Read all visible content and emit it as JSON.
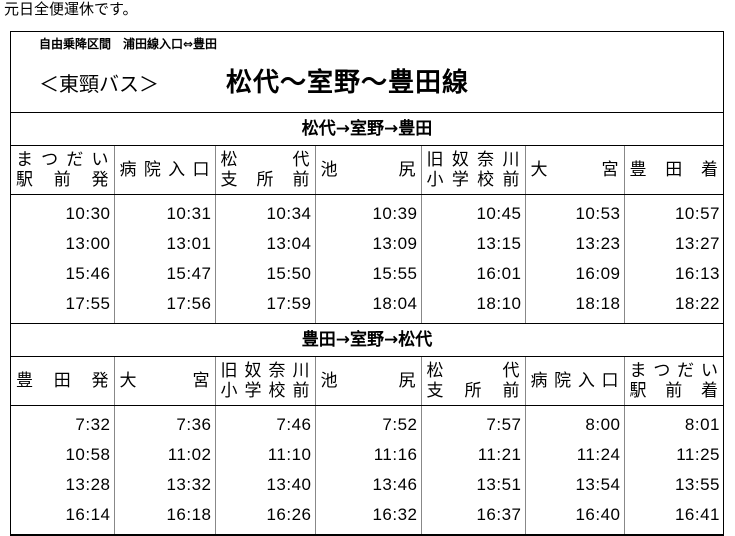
{
  "notice": "元日全便運休です。",
  "header": {
    "free_boarding": "自由乗降区間　浦田線入口⇔豊田",
    "operator": "＜東頸バス＞",
    "route_name": "松代～室野～豊田線"
  },
  "timetables": [
    {
      "direction": "松代→室野→豊田",
      "stops": [
        [
          "まつだい",
          "駅 前 発"
        ],
        [
          "病院入口"
        ],
        [
          "松　代",
          "支 所 前"
        ],
        [
          "池　尻"
        ],
        [
          "旧奴奈川",
          "小学校前"
        ],
        [
          "大　宮"
        ],
        [
          "豊 田 着"
        ]
      ],
      "rows": [
        [
          "10:30",
          "10:31",
          "10:34",
          "10:39",
          "10:45",
          "10:53",
          "10:57"
        ],
        [
          "13:00",
          "13:01",
          "13:04",
          "13:09",
          "13:15",
          "13:23",
          "13:27"
        ],
        [
          "15:46",
          "15:47",
          "15:50",
          "15:55",
          "16:01",
          "16:09",
          "16:13"
        ],
        [
          "17:55",
          "17:56",
          "17:59",
          "18:04",
          "18:10",
          "18:18",
          "18:22"
        ]
      ]
    },
    {
      "direction": "豊田→室野→松代",
      "stops": [
        [
          "豊 田 発"
        ],
        [
          "大　宮"
        ],
        [
          "旧奴奈川",
          "小学校前"
        ],
        [
          "池　尻"
        ],
        [
          "松　代",
          "支 所 前"
        ],
        [
          "病院入口"
        ],
        [
          "まつだい",
          "駅 前 着"
        ]
      ],
      "rows": [
        [
          "7:32",
          "7:36",
          "7:46",
          "7:52",
          "7:57",
          "8:00",
          "8:01"
        ],
        [
          "10:58",
          "11:02",
          "11:10",
          "11:16",
          "11:21",
          "11:24",
          "11:25"
        ],
        [
          "13:28",
          "13:32",
          "13:40",
          "13:46",
          "13:51",
          "13:54",
          "13:55"
        ],
        [
          "16:14",
          "16:18",
          "16:26",
          "16:32",
          "16:37",
          "16:40",
          "16:41"
        ]
      ]
    }
  ]
}
